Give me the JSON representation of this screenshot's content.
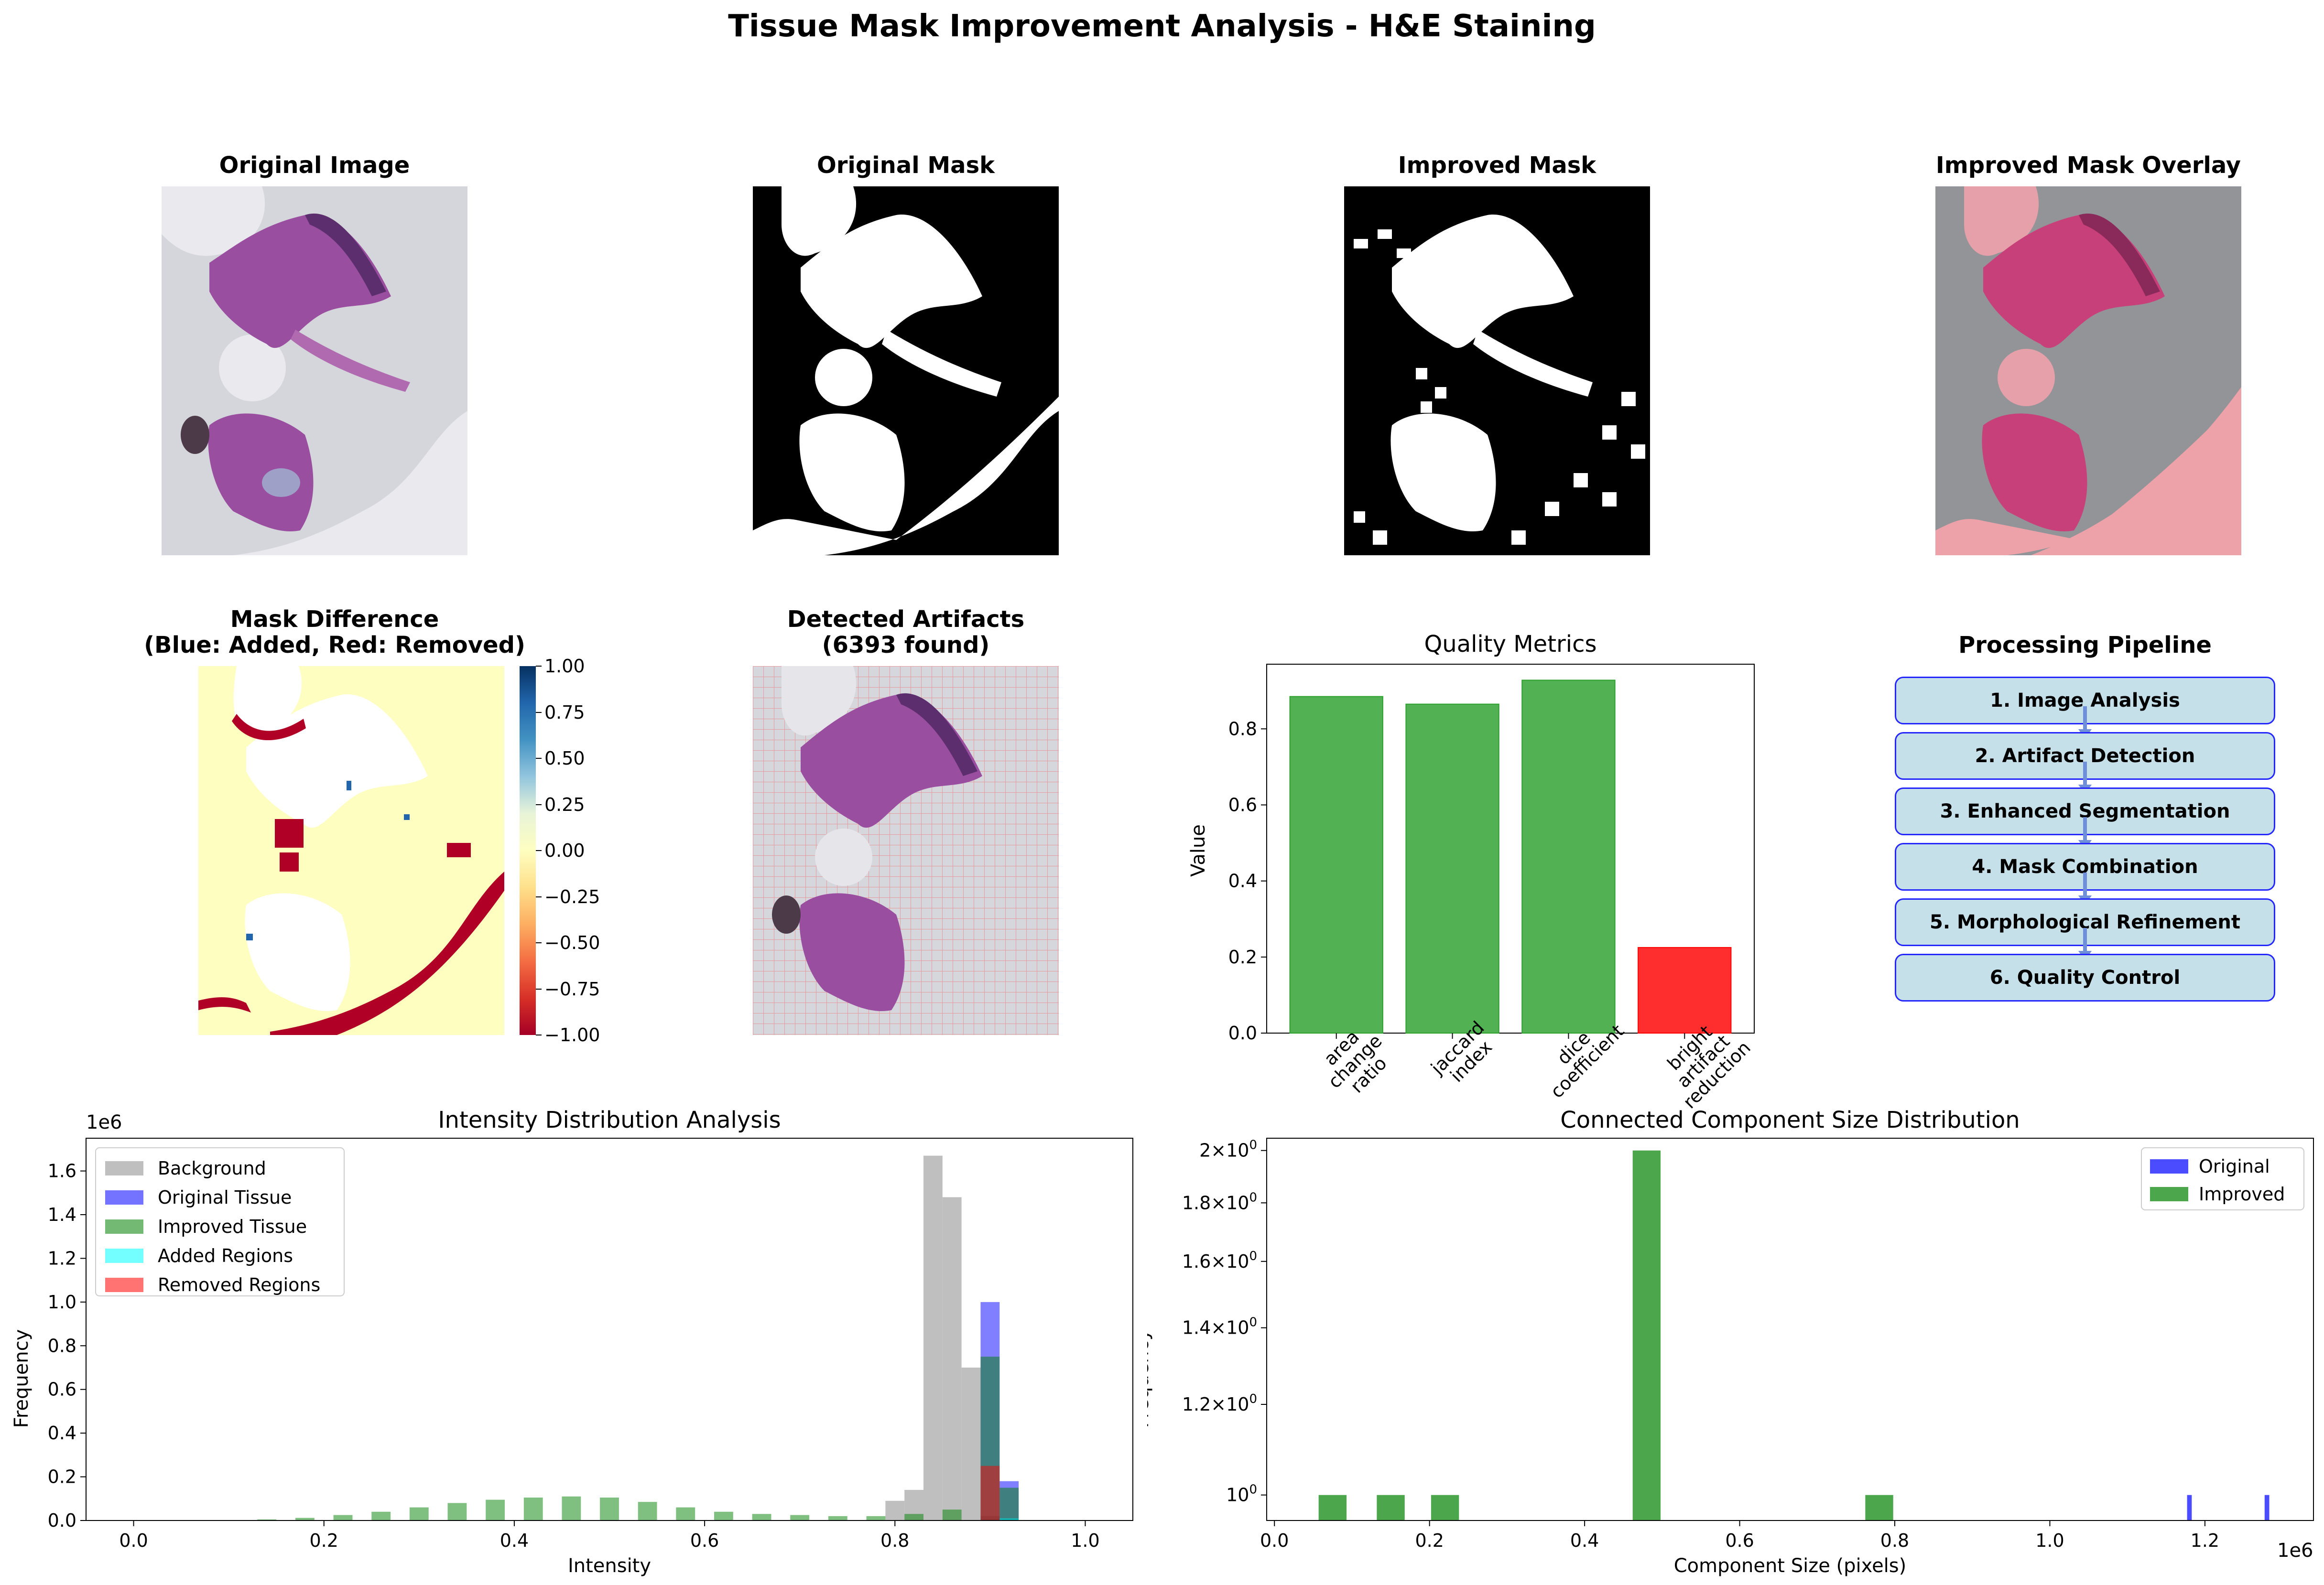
{
  "figure": {
    "title": "Tissue Mask Improvement Analysis - H&E Staining"
  },
  "panels": {
    "original_image": {
      "title": "Original Image"
    },
    "original_mask": {
      "title": "Original Mask"
    },
    "improved_mask": {
      "title": "Improved Mask"
    },
    "improved_overlay": {
      "title": "Improved Mask Overlay"
    },
    "mask_difference": {
      "title_line1": "Mask Difference",
      "title_line2": "(Blue: Added, Red: Removed)",
      "colorbar_ticks": [
        "1.00",
        "0.75",
        "0.50",
        "0.25",
        "0.00",
        "−0.25",
        "−0.50",
        "−0.75",
        "−1.00"
      ]
    },
    "detected_artifacts": {
      "title_line1": "Detected Artifacts",
      "title_line2": "(6393 found)"
    },
    "pipeline": {
      "title": "Processing Pipeline",
      "steps": [
        "1. Image Analysis",
        "2. Artifact Detection",
        "3. Enhanced Segmentation",
        "4. Mask Combination",
        "5. Morphological Refinement",
        "6. Quality Control"
      ]
    }
  },
  "colors": {
    "bar_good": "#2ca02c",
    "bar_bad": "#ff0000",
    "background_hist": "#a9a9a9",
    "original_tissue": "#0000ff",
    "improved_tissue": "#008000",
    "added_regions": "#00ffff",
    "removed_regions": "#ff0000",
    "pipeline_box": "#c6e0ea",
    "pipeline_border": "#2525ff"
  },
  "chart_data": [
    {
      "id": "quality_metrics",
      "type": "bar",
      "title": "Quality Metrics",
      "xlabel": "",
      "ylabel": "Value",
      "categories": [
        "area\nchange\nratio",
        "jaccard\nindex",
        "dice\ncoefficient",
        "bright\nartifact\nreduction"
      ],
      "values": [
        0.885,
        0.865,
        0.928,
        0.225
      ],
      "bar_colors": [
        "#2ca02c",
        "#2ca02c",
        "#2ca02c",
        "#ff0000"
      ],
      "ylim": [
        0,
        0.97
      ],
      "yticks": [
        "0.0",
        "0.2",
        "0.4",
        "0.6",
        "0.8"
      ],
      "grid": false
    },
    {
      "id": "intensity_distribution",
      "type": "bar",
      "title": "Intensity Distribution Analysis",
      "xlabel": "Intensity",
      "ylabel": "Frequency",
      "y_multiplier": "1e6",
      "xlim": [
        -0.05,
        1.05
      ],
      "ylim": [
        0,
        1.75
      ],
      "xticks": [
        "0.0",
        "0.2",
        "0.4",
        "0.6",
        "0.8",
        "1.0"
      ],
      "yticks": [
        "0.0",
        "0.2",
        "0.4",
        "0.6",
        "0.8",
        "1.0",
        "1.2",
        "1.4",
        "1.6"
      ],
      "legend_placement": "upper-left",
      "series": [
        {
          "name": "Background",
          "color": "#a9a9a9",
          "x": [
            0.8,
            0.82,
            0.84,
            0.86,
            0.88,
            0.9,
            0.92
          ],
          "values": [
            0.09,
            0.14,
            1.67,
            1.48,
            0.7,
            0.02,
            0.01
          ]
        },
        {
          "name": "Original Tissue",
          "color": "#0000ff",
          "x": [
            0.9,
            0.92
          ],
          "values": [
            1.0,
            0.18
          ]
        },
        {
          "name": "Improved Tissue",
          "color": "#008000",
          "x": [
            0.1,
            0.14,
            0.18,
            0.22,
            0.26,
            0.3,
            0.34,
            0.38,
            0.42,
            0.46,
            0.5,
            0.54,
            0.58,
            0.62,
            0.66,
            0.7,
            0.74,
            0.78,
            0.82,
            0.86,
            0.9,
            0.92
          ],
          "values": [
            0.002,
            0.005,
            0.012,
            0.025,
            0.04,
            0.06,
            0.08,
            0.095,
            0.105,
            0.11,
            0.105,
            0.085,
            0.06,
            0.04,
            0.03,
            0.025,
            0.02,
            0.02,
            0.03,
            0.05,
            0.75,
            0.15
          ]
        },
        {
          "name": "Added Regions",
          "color": "#00ffff",
          "x": [
            0.92
          ],
          "values": [
            0.01
          ]
        },
        {
          "name": "Removed Regions",
          "color": "#ff0000",
          "x": [
            0.9
          ],
          "values": [
            0.25
          ]
        }
      ]
    },
    {
      "id": "component_sizes",
      "type": "bar",
      "title": "Connected Component Size Distribution",
      "xlabel": "Component Size (pixels)",
      "ylabel": "Frequency",
      "x_multiplier": "1e6",
      "y_scale": "log",
      "xlim": [
        -0.01,
        1.34
      ],
      "ylim": [
        0.95,
        2.05
      ],
      "xticks": [
        "0.0",
        "0.2",
        "0.4",
        "0.6",
        "0.8",
        "1.0",
        "1.2"
      ],
      "yticks": [
        "10^0",
        "1.2×10^0",
        "1.4×10^0",
        "1.6×10^0",
        "1.8×10^0",
        "2×10^0"
      ],
      "legend_placement": "upper-right",
      "series": [
        {
          "name": "Original",
          "color": "#0000ff",
          "x": [
            1.18,
            1.28
          ],
          "values": [
            1,
            1
          ]
        },
        {
          "name": "Improved",
          "color": "#008000",
          "x": [
            0.075,
            0.15,
            0.22,
            0.48,
            0.78
          ],
          "values": [
            1,
            1,
            1,
            2,
            1
          ]
        }
      ]
    }
  ]
}
